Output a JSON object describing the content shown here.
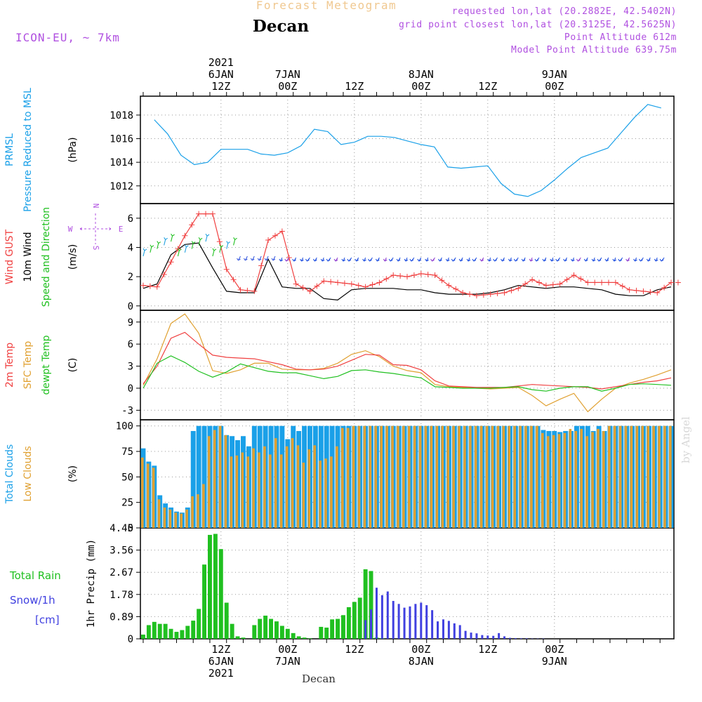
{
  "header": {
    "subtitle": "Forecast Meteogram",
    "title": "Decan",
    "model": "ICON-EU, ~ 7km",
    "requested": "requested lon,lat (20.2882E, 42.5402N)",
    "closest": "grid point closest lon,lat (20.3125E, 42.5625N)",
    "point_alt": "Point Altitude 612m",
    "model_alt": "Model Point Altitude 639.75m",
    "byline": "by Angel",
    "footer": "Decan"
  },
  "colors": {
    "prmsl": "#1aa0e8",
    "gust": "#f04040",
    "wind": "#000000",
    "dir": "#20c020",
    "t2m": "#f04040",
    "sfc": "#e0a030",
    "dew": "#20c020",
    "total_clouds": "#1aa0e8",
    "low_clouds": "#e0a030",
    "rain": "#20c020",
    "snow": "#4040e0",
    "purple": "#b050e0"
  },
  "chart_data": [
    {
      "type": "line",
      "title": "",
      "ylabel": "PRMSL Pressure Reduced to MSL (hPa)",
      "x_start_hour": 0,
      "x_step_hours": 3,
      "yticks": [
        "1012",
        "1014",
        "1016",
        "1018"
      ],
      "ylim": [
        1010.5,
        1019.6
      ],
      "series": [
        {
          "name": "PRMSL",
          "values": [
            1017.6,
            1016.4,
            1014.6,
            1013.8,
            1014.0,
            1015.1,
            1015.1,
            1015.1,
            1014.7,
            1014.6,
            1014.8,
            1015.4,
            1016.8,
            1016.6,
            1015.5,
            1015.7,
            1016.2,
            1016.2,
            1016.1,
            1015.8,
            1015.5,
            1015.3,
            1013.6,
            1013.5,
            1013.6,
            1013.7,
            1012.2,
            1011.3,
            1011.1,
            1011.6,
            1012.5,
            1013.5,
            1014.4,
            1014.8,
            1015.2,
            1016.5,
            1017.8,
            1018.9,
            1018.6
          ]
        }
      ]
    },
    {
      "type": "line",
      "ylabel": "Wind GUST / 10m Wind / Speed and Direction (m/s)",
      "yticks": [
        "0",
        "2",
        "4",
        "6"
      ],
      "ylim": [
        -0.3,
        7.0
      ],
      "compass": {
        "n": "N",
        "s": "S",
        "w": "W",
        "e": "E"
      },
      "series": [
        {
          "name": "Wind GUST",
          "values": [
            1.4,
            1.3,
            3.0,
            4.8,
            6.3,
            6.3,
            2.5,
            1.1,
            1.0,
            4.5,
            5.1,
            1.5,
            1.0,
            1.7,
            1.6,
            1.5,
            1.3,
            1.6,
            2.1,
            2.0,
            2.2,
            2.1,
            1.4,
            0.9,
            0.7,
            0.8,
            0.9,
            1.2,
            1.8,
            1.4,
            1.5,
            2.1,
            1.6,
            1.6,
            1.6,
            1.1,
            1.0,
            0.9,
            1.6
          ]
        },
        {
          "name": "10m Wind",
          "values": [
            1.2,
            1.5,
            3.5,
            4.2,
            4.3,
            2.6,
            1.0,
            0.9,
            0.9,
            3.2,
            1.3,
            1.2,
            1.2,
            0.5,
            0.4,
            1.1,
            1.2,
            1.2,
            1.2,
            1.1,
            1.1,
            0.9,
            0.8,
            0.8,
            0.8,
            0.9,
            1.1,
            1.4,
            1.3,
            1.2,
            1.3,
            1.3,
            1.2,
            1.1,
            0.8,
            0.7,
            0.7,
            1.1,
            1.3
          ]
        }
      ]
    },
    {
      "type": "line",
      "ylabel": "2m Temp / SFC Temp / dewpt Temp (C)",
      "yticks": [
        "-3",
        "0",
        "3",
        "6",
        "9"
      ],
      "ylim": [
        -4.3,
        10.6
      ],
      "series": [
        {
          "name": "2m Temp",
          "values": [
            0.6,
            3.0,
            6.8,
            7.6,
            6.0,
            4.5,
            4.2,
            4.1,
            4.0,
            3.6,
            3.2,
            2.6,
            2.5,
            2.6,
            3.0,
            3.8,
            4.6,
            4.5,
            3.2,
            3.1,
            2.5,
            1.0,
            0.3,
            0.2,
            0.1,
            0.1,
            0.1,
            0.3,
            0.5,
            0.4,
            0.3,
            0.2,
            0.1,
            -0.1,
            0.2,
            0.5,
            0.8,
            1.0,
            1.4
          ]
        },
        {
          "name": "SFC Temp",
          "values": [
            0.4,
            4.0,
            8.8,
            10.1,
            7.5,
            2.4,
            2.0,
            2.5,
            3.4,
            3.4,
            2.6,
            2.5,
            2.5,
            2.7,
            3.4,
            4.6,
            5.1,
            4.3,
            3.0,
            2.4,
            2.1,
            0.5,
            0.2,
            0.1,
            0.0,
            -0.1,
            0.0,
            0.1,
            -1.0,
            -2.4,
            -1.5,
            -0.7,
            -3.2,
            -1.5,
            0.0,
            0.7,
            1.2,
            1.8,
            2.5
          ]
        },
        {
          "name": "dewpt Temp",
          "values": [
            0.0,
            3.4,
            4.4,
            3.5,
            2.3,
            1.5,
            2.2,
            3.3,
            2.8,
            2.3,
            2.1,
            2.1,
            1.7,
            1.3,
            1.6,
            2.4,
            2.5,
            2.2,
            2.0,
            1.7,
            1.4,
            0.2,
            0.1,
            0.0,
            0.0,
            0.0,
            0.1,
            0.2,
            -0.2,
            -0.4,
            0.0,
            0.2,
            0.2,
            -0.4,
            0.0,
            0.5,
            0.6,
            0.5,
            0.4
          ]
        }
      ]
    },
    {
      "type": "bar",
      "ylabel": "Total Clouds / Low Clouds (%)",
      "yticks": [
        "0",
        "25",
        "50",
        "75",
        "100"
      ],
      "ylim": [
        0,
        106
      ],
      "series": [
        {
          "name": "Total Clouds",
          "values": [
            78,
            65,
            61,
            32,
            24,
            20,
            16,
            15,
            20,
            95,
            100,
            100,
            100,
            100,
            100,
            91,
            90,
            86,
            90,
            80,
            100,
            100,
            100,
            100,
            100,
            100,
            87,
            100,
            95,
            100,
            100,
            100,
            100,
            100,
            100,
            100,
            100,
            100,
            100,
            100,
            100,
            100,
            100,
            100,
            100,
            100,
            100,
            100,
            100,
            100,
            100,
            100,
            100,
            100,
            100,
            100,
            100,
            100,
            100,
            100,
            100,
            100,
            100,
            100,
            100,
            100,
            100,
            100,
            100,
            100,
            100,
            100,
            96,
            95,
            95,
            94,
            95,
            95,
            100,
            100,
            100,
            95,
            100,
            95,
            100,
            100,
            100,
            100,
            100,
            100,
            100,
            100,
            100,
            100,
            100,
            100
          ]
        },
        {
          "name": "Low Clouds",
          "values": [
            69,
            63,
            59,
            28,
            20,
            18,
            15,
            14,
            18,
            31,
            33,
            43,
            90,
            96,
            100,
            91,
            70,
            71,
            74,
            70,
            78,
            74,
            80,
            72,
            88,
            72,
            80,
            88,
            81,
            64,
            77,
            81,
            66,
            68,
            70,
            80,
            98,
            98,
            100,
            100,
            100,
            100,
            100,
            100,
            100,
            100,
            100,
            100,
            100,
            100,
            100,
            100,
            100,
            100,
            100,
            100,
            100,
            100,
            100,
            100,
            100,
            100,
            100,
            100,
            100,
            100,
            100,
            100,
            100,
            100,
            100,
            100,
            93,
            90,
            91,
            92,
            93,
            97,
            95,
            97,
            90,
            94,
            97,
            95,
            100,
            100,
            100,
            100,
            100,
            100,
            100,
            100,
            100,
            100,
            100,
            100
          ]
        }
      ]
    },
    {
      "type": "bar",
      "ylabel": "1hr Precip (mm)",
      "yticks": [
        "0",
        "0.89",
        "1.78",
        "2.67",
        "3.56",
        "4.45"
      ],
      "ylim": [
        0,
        4.45
      ],
      "legend": {
        "rain": "Total  Rain",
        "snow": "Snow/1h",
        "snow_unit": "[cm]"
      },
      "series": [
        {
          "name": "Total Rain",
          "values": [
            0.17,
            0.55,
            0.68,
            0.6,
            0.6,
            0.4,
            0.28,
            0.35,
            0.52,
            0.73,
            1.2,
            2.98,
            4.17,
            4.21,
            3.6,
            1.45,
            0.6,
            0.1,
            0.05,
            0.0,
            0.55,
            0.8,
            0.93,
            0.8,
            0.7,
            0.52,
            0.4,
            0.23,
            0.1,
            0.05,
            0.02,
            0.0,
            0.48,
            0.45,
            0.78,
            0.8,
            0.95,
            1.27,
            1.48,
            1.65,
            2.79,
            2.72,
            0.05,
            0.02,
            0,
            0,
            0,
            0,
            0,
            0,
            0,
            0,
            0,
            0,
            0,
            0,
            0,
            0,
            0,
            0,
            0,
            0,
            0,
            0,
            0,
            0,
            0,
            0,
            0,
            0,
            0,
            0,
            0,
            0,
            0,
            0,
            0,
            0,
            0,
            0,
            0,
            0,
            0,
            0,
            0,
            0,
            0,
            0,
            0,
            0,
            0,
            0,
            0,
            0,
            0,
            0
          ]
        },
        {
          "name": "Snow/1h",
          "values": [
            0,
            0,
            0,
            0,
            0,
            0,
            0,
            0,
            0,
            0,
            0,
            0,
            0,
            0,
            0,
            0,
            0,
            0,
            0,
            0,
            0,
            0,
            0,
            0,
            0,
            0,
            0,
            0,
            0,
            0,
            0,
            0,
            0,
            0,
            0,
            0,
            0,
            0,
            0,
            0,
            0.75,
            1.18,
            2.05,
            1.75,
            1.9,
            1.52,
            1.4,
            1.25,
            1.3,
            1.4,
            1.45,
            1.35,
            1.15,
            0.7,
            0.78,
            0.72,
            0.62,
            0.55,
            0.32,
            0.25,
            0.22,
            0.15,
            0.13,
            0.12,
            0.23,
            0.1,
            0.04,
            0.03,
            0.02,
            0.02,
            0.01,
            0.01,
            0.01,
            0,
            0,
            0,
            0,
            0,
            0,
            0,
            0,
            0,
            0,
            0,
            0,
            0,
            0,
            0,
            0,
            0,
            0,
            0,
            0,
            0,
            0,
            0
          ]
        }
      ]
    }
  ],
  "time_axis": {
    "top": [
      {
        "hour": 12,
        "lines": [
          "2021",
          "6JAN",
          "12Z"
        ]
      },
      {
        "hour": 24,
        "lines": [
          "7JAN",
          "00Z"
        ]
      },
      {
        "hour": 36,
        "lines": [
          "12Z"
        ]
      },
      {
        "hour": 48,
        "lines": [
          "8JAN",
          "00Z"
        ]
      },
      {
        "hour": 60,
        "lines": [
          "12Z"
        ]
      },
      {
        "hour": 72,
        "lines": [
          "9JAN",
          "00Z"
        ]
      }
    ],
    "bottom": [
      {
        "hour": 12,
        "lines": [
          "12Z",
          "6JAN",
          "2021"
        ]
      },
      {
        "hour": 24,
        "lines": [
          "00Z",
          "7JAN"
        ]
      },
      {
        "hour": 36,
        "lines": [
          "12Z"
        ]
      },
      {
        "hour": 48,
        "lines": [
          "00Z",
          "8JAN"
        ]
      },
      {
        "hour": 60,
        "lines": [
          "12Z"
        ]
      },
      {
        "hour": 72,
        "lines": [
          "00Z",
          "9JAN"
        ]
      }
    ]
  },
  "side_labels": [
    {
      "lines": [
        {
          "t": "PRMSL",
          "c": "prmsl"
        },
        {
          "t": "Pressure Reduced to MSL",
          "c": "prmsl"
        },
        {
          "t": "(hPa)",
          "c": "wind"
        }
      ]
    },
    {
      "lines": [
        {
          "t": "Wind GUST",
          "c": "gust"
        },
        {
          "t": "10m Wind",
          "c": "wind"
        },
        {
          "t": "Speed and Direction",
          "c": "dir"
        },
        {
          "t": "(m/s)",
          "c": "wind"
        }
      ]
    },
    {
      "lines": [
        {
          "t": "2m Temp",
          "c": "t2m"
        },
        {
          "t": "SFC Temp",
          "c": "sfc"
        },
        {
          "t": "dewpt Temp",
          "c": "dew"
        },
        {
          "t": "(C)",
          "c": "wind"
        }
      ]
    },
    {
      "lines": [
        {
          "t": "Total Clouds",
          "c": "total_clouds"
        },
        {
          "t": "Low Clouds",
          "c": "low_clouds"
        },
        {
          "t": "(%)",
          "c": "wind"
        }
      ]
    },
    {
      "lines": [
        {
          "t": "1hr Precip (mm)",
          "c": "wind"
        }
      ]
    }
  ]
}
